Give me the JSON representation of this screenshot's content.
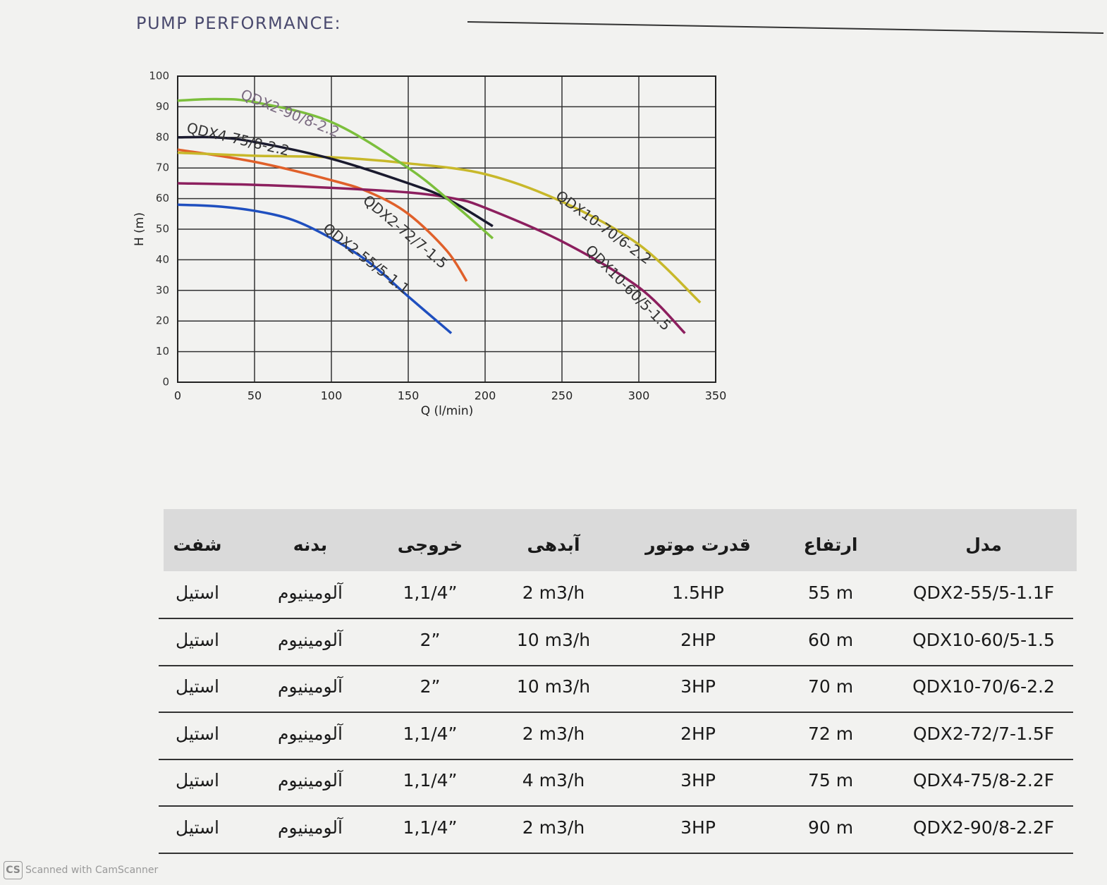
{
  "header": {
    "title": "PUMP PERFORMANCE:"
  },
  "chart_data": {
    "type": "line",
    "x_label": "Q (l/min)",
    "y_label": "H (m)",
    "xlim": [
      0,
      350
    ],
    "xticks": [
      0,
      50,
      100,
      150,
      200,
      250,
      300,
      350
    ],
    "ylim": [
      0,
      100
    ],
    "yticks": [
      0,
      10,
      20,
      30,
      40,
      50,
      60,
      70,
      80,
      90,
      100
    ],
    "grid": true,
    "series": [
      {
        "name": "QDX2-55/5-1.1",
        "color": "#1f4fbf",
        "x": [
          0,
          25,
          50,
          75,
          100,
          125,
          150,
          178
        ],
        "values": [
          58,
          57.5,
          56,
          53,
          47,
          39,
          28,
          16
        ]
      },
      {
        "name": "QDX2-72/7-1.5",
        "color": "#e0602a",
        "x": [
          0,
          50,
          100,
          125,
          150,
          175,
          188
        ],
        "values": [
          76,
          72,
          66,
          62,
          55,
          43,
          33
        ]
      },
      {
        "name": "QDX10-60/5-1.5",
        "color": "#8c1f5e",
        "x": [
          0,
          50,
          100,
          150,
          180,
          200,
          250,
          300,
          330
        ],
        "values": [
          65,
          64.5,
          63.5,
          62,
          60,
          57,
          46,
          31,
          16
        ]
      },
      {
        "name": "QDX10-70/6-2.2",
        "color": "#c8b82a",
        "x": [
          0,
          50,
          100,
          150,
          200,
          250,
          300,
          340
        ],
        "values": [
          75,
          74,
          73.5,
          71.5,
          68,
          59,
          45,
          26
        ]
      },
      {
        "name": "QDX4-75/8-2.2",
        "color": "#1a1a2e",
        "x": [
          0,
          25,
          50,
          100,
          150,
          175,
          205
        ],
        "values": [
          80,
          80,
          78.5,
          73,
          65,
          60,
          51
        ]
      },
      {
        "name": "QDX2-90/8-2.2",
        "color": "#7cbf3c",
        "x": [
          0,
          25,
          50,
          100,
          150,
          180,
          205
        ],
        "values": [
          92,
          92.5,
          91.5,
          85,
          70,
          58,
          47
        ]
      }
    ]
  },
  "table": {
    "headers": [
      "شفت",
      "بدنه",
      "خروجی",
      "آبدهی",
      "قدرت موتور",
      "ارتفاع",
      "مدل"
    ],
    "rows": [
      [
        "استیل",
        "آلومینیوم",
        "1,1/4”",
        "2 m3/h",
        "1.5HP",
        "55 m",
        "QDX2-55/5-1.1F"
      ],
      [
        "استیل",
        "آلومینیوم",
        "2”",
        "10 m3/h",
        "2HP",
        "60 m",
        "QDX10-60/5-1.5"
      ],
      [
        "استیل",
        "آلومینیوم",
        "2”",
        "10 m3/h",
        "3HP",
        "70 m",
        "QDX10-70/6-2.2"
      ],
      [
        "استیل",
        "آلومینیوم",
        "1,1/4”",
        "2 m3/h",
        "2HP",
        "72 m",
        "QDX2-72/7-1.5F"
      ],
      [
        "استیل",
        "آلومینیوم",
        "1,1/4”",
        "4 m3/h",
        "3HP",
        "75 m",
        "QDX4-75/8-2.2F"
      ],
      [
        "استیل",
        "آلومینیوم",
        "1,1/4”",
        "2 m3/h",
        "3HP",
        "90 m",
        "QDX2-90/8-2.2F"
      ]
    ]
  },
  "footer": {
    "logo": "CS",
    "text": "Scanned with CamScanner"
  }
}
